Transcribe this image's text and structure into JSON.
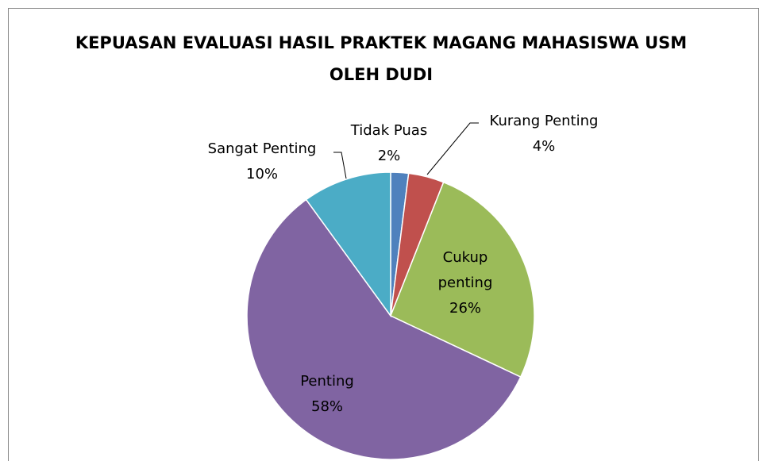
{
  "chart_data": {
    "type": "pie",
    "title": "KEPUASAN EVALUASI HASIL PRAKTEK MAGANG MAHASISWA USM OLEH DUDI",
    "categories": [
      "Tidak Puas",
      "Kurang Penting",
      "Cukup penting",
      "Penting",
      "Sangat Penting"
    ],
    "values": [
      2,
      4,
      26,
      58,
      10
    ],
    "value_labels": [
      "2%",
      "4%",
      "26%",
      "58%",
      "10%"
    ],
    "colors": [
      "#4f81bd",
      "#c0504d",
      "#9bbb59",
      "#8064a2",
      "#4bacc6"
    ]
  }
}
